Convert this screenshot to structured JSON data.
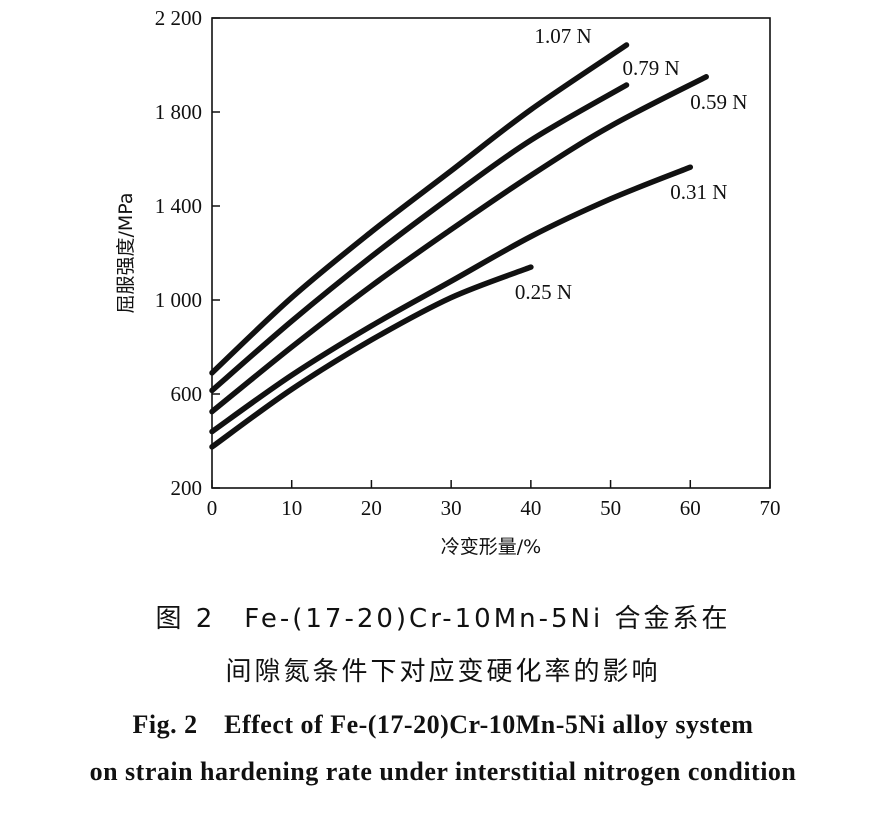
{
  "chart_data": {
    "type": "line",
    "xlabel": "冷变形量/%",
    "ylabel": "屈服强度/MPa",
    "xlim": [
      0,
      70
    ],
    "ylim": [
      200,
      2200
    ],
    "x_ticks": [
      0,
      10,
      20,
      30,
      40,
      50,
      60,
      70
    ],
    "x_tick_labels": [
      "0",
      "10",
      "20",
      "30",
      "40",
      "50",
      "60",
      "70"
    ],
    "y_ticks": [
      200,
      600,
      1000,
      1400,
      1800,
      2200
    ],
    "y_tick_labels": [
      "200",
      "600",
      "1 000",
      "1 400",
      "1 800",
      "2 200"
    ],
    "grid": false,
    "series": [
      {
        "name": "1.07 N",
        "x": [
          0,
          10,
          20,
          30,
          40,
          52
        ],
        "y": [
          690,
          1010,
          1290,
          1550,
          1810,
          2085
        ]
      },
      {
        "name": "0.79 N",
        "x": [
          0,
          10,
          20,
          30,
          40,
          52
        ],
        "y": [
          615,
          910,
          1185,
          1440,
          1680,
          1915
        ]
      },
      {
        "name": "0.59 N",
        "x": [
          0,
          10,
          20,
          30,
          40,
          50,
          62
        ],
        "y": [
          525,
          800,
          1060,
          1300,
          1530,
          1740,
          1950
        ]
      },
      {
        "name": "0.31 N",
        "x": [
          0,
          10,
          20,
          30,
          40,
          50,
          60
        ],
        "y": [
          440,
          680,
          890,
          1080,
          1270,
          1430,
          1565
        ]
      },
      {
        "name": "0.25 N",
        "x": [
          0,
          10,
          20,
          30,
          40
        ],
        "y": [
          375,
          620,
          830,
          1010,
          1140
        ]
      }
    ]
  },
  "caption": {
    "zh_line1": "图 2　Fe-(17-20)Cr-10Mn-5Ni 合金系在",
    "zh_line2": "间隙氮条件下对应变硬化率的影响",
    "en_line1": "Fig. 2　Effect of Fe-(17-20)Cr-10Mn-5Ni alloy system",
    "en_line2": "on strain hardening rate under interstitial nitrogen condition"
  }
}
